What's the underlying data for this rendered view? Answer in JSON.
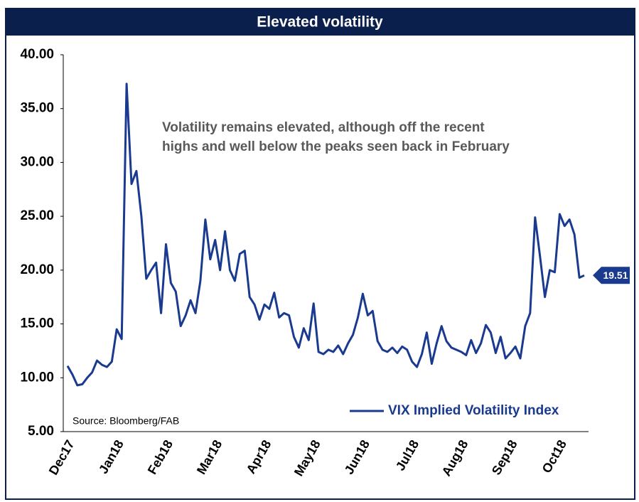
{
  "chart_data": {
    "type": "line",
    "title": "Elevated volatility",
    "annotation": "Volatility remains elevated, although off the recent highs and well below the peaks seen back in February",
    "annotation_lines": [
      "Volatility remains elevated, although off the recent",
      "highs and well below the peaks seen back in February"
    ],
    "source": "Source: Bloomberg/FAB",
    "categories": [
      "Dec17",
      null,
      null,
      null,
      null,
      null,
      null,
      null,
      null,
      null,
      "Jan18",
      null,
      null,
      null,
      null,
      null,
      null,
      null,
      null,
      null,
      "Feb18",
      null,
      null,
      null,
      null,
      null,
      null,
      null,
      null,
      null,
      "Mar18",
      null,
      null,
      null,
      null,
      null,
      null,
      null,
      null,
      null,
      "Apr18",
      null,
      null,
      null,
      null,
      null,
      null,
      null,
      null,
      null,
      "May18",
      null,
      null,
      null,
      null,
      null,
      null,
      null,
      null,
      null,
      "Jun18",
      null,
      null,
      null,
      null,
      null,
      null,
      null,
      null,
      null,
      "Jul18",
      null,
      null,
      null,
      null,
      null,
      null,
      null,
      null,
      null,
      "Aug18",
      null,
      null,
      null,
      null,
      null,
      null,
      null,
      null,
      null,
      "Sep18",
      null,
      null,
      null,
      null,
      null,
      null,
      null,
      null,
      null,
      "Oct18",
      null,
      null,
      null,
      null,
      null
    ],
    "series": [
      {
        "name": "VIX Implied Volatility Index",
        "color": "#1a3a8f",
        "values": [
          11.1,
          10.3,
          9.3,
          9.4,
          10.0,
          10.5,
          11.6,
          11.2,
          11.0,
          11.5,
          14.5,
          13.6,
          37.3,
          28,
          29.2,
          25,
          19.2,
          20.0,
          20.7,
          16.0,
          22.4,
          18.8,
          18.0,
          14.8,
          15.8,
          17.2,
          16.0,
          19.0,
          24.7,
          21.0,
          22.8,
          20.0,
          23.6,
          20.0,
          19.0,
          21.5,
          21.8,
          17.5,
          16.8,
          15.4,
          16.8,
          16.4,
          17.9,
          15.6,
          16.0,
          15.8,
          13.8,
          12.8,
          14.6,
          13.5,
          16.9,
          12.4,
          12.2,
          12.6,
          12.4,
          13.0,
          12.2,
          13.2,
          14.0,
          15.6,
          17.8,
          15.8,
          16.2,
          13.4,
          12.6,
          12.4,
          12.8,
          12.3,
          12.9,
          12.6,
          11.5,
          11.0,
          12.2,
          14.2,
          11.3,
          13.2,
          14.8,
          13.4,
          12.8,
          12.6,
          12.4,
          12.1,
          13.5,
          12.3,
          13.2,
          14.9,
          14.2,
          12.3,
          13.8,
          11.8,
          12.3,
          12.9,
          11.8,
          14.8,
          16.0,
          24.9,
          21.3,
          17.5,
          20.0,
          19.8,
          25.2,
          24.1,
          24.7,
          23.3,
          19.3,
          19.51
        ]
      }
    ],
    "ylim": [
      5,
      40
    ],
    "yticks": [
      {
        "value": 5,
        "label": "5.00"
      },
      {
        "value": 10,
        "label": "10.00"
      },
      {
        "value": 15,
        "label": "15.00"
      },
      {
        "value": 20,
        "label": "20.00"
      },
      {
        "value": 25,
        "label": "25.00"
      },
      {
        "value": 30,
        "label": "30.00"
      },
      {
        "value": 35,
        "label": "35.00"
      },
      {
        "value": 40,
        "label": "40.00"
      }
    ],
    "grid": false,
    "legend": "lower right"
  }
}
